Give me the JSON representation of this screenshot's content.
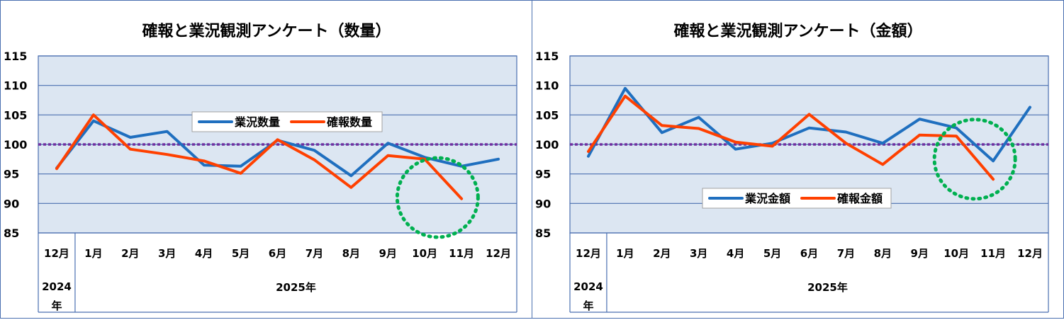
{
  "chart_data": [
    {
      "type": "line",
      "title": "確報と業況観測アンケート（数量）",
      "categories": [
        "12月",
        "1月",
        "2月",
        "3月",
        "4月",
        "5月",
        "6月",
        "7月",
        "8月",
        "9月",
        "10月",
        "11月",
        "12月"
      ],
      "year_groups": [
        {
          "label": "2024年",
          "lines": [
            "2024",
            "年"
          ],
          "span": 1
        },
        {
          "label": "2025年",
          "lines": [
            "2025年"
          ],
          "span": 12
        }
      ],
      "series": [
        {
          "name": "業況数量",
          "color": "#1f6fbf",
          "values": [
            96.0,
            104.0,
            101.2,
            102.2,
            96.5,
            96.3,
            100.7,
            99.0,
            94.7,
            100.2,
            97.8,
            96.3,
            97.5
          ]
        },
        {
          "name": "確報数量",
          "color": "#ff4000",
          "values": [
            95.9,
            105.0,
            99.2,
            98.3,
            97.2,
            95.1,
            100.8,
            97.4,
            92.7,
            98.1,
            97.5,
            90.8,
            null
          ]
        }
      ],
      "ylim": [
        85,
        115
      ],
      "yticks": [
        85,
        90,
        95,
        100,
        105,
        110,
        115
      ],
      "reference_line": {
        "value": 100,
        "color": "#7030a0",
        "style": "dotted"
      },
      "highlight_circle": {
        "center_category": 10.85,
        "center_value": 91.0,
        "color": "#00b050"
      },
      "legend_position": "top-center",
      "grid": true,
      "plot_bg": "#dce6f2",
      "grid_color": "#4a6fb0"
    },
    {
      "type": "line",
      "title": "確報と業況観測アンケート（金額）",
      "categories": [
        "12月",
        "1月",
        "2月",
        "3月",
        "4月",
        "5月",
        "6月",
        "7月",
        "8月",
        "9月",
        "10月",
        "11月",
        "12月"
      ],
      "year_groups": [
        {
          "label": "2024年",
          "lines": [
            "2024",
            "年"
          ],
          "span": 1
        },
        {
          "label": "2025年",
          "lines": [
            "2025年"
          ],
          "span": 12
        }
      ],
      "series": [
        {
          "name": "業況金額",
          "color": "#1f6fbf",
          "values": [
            98.0,
            109.5,
            102.0,
            104.6,
            99.2,
            100.2,
            102.8,
            102.1,
            100.2,
            104.3,
            102.8,
            97.2,
            106.3
          ]
        },
        {
          "name": "確報金額",
          "color": "#ff4000",
          "values": [
            98.8,
            108.2,
            103.2,
            102.7,
            100.4,
            99.7,
            105.1,
            100.2,
            96.6,
            101.6,
            101.4,
            94.1,
            null
          ]
        }
      ],
      "ylim": [
        85,
        115
      ],
      "yticks": [
        85,
        90,
        95,
        100,
        105,
        110,
        115
      ],
      "reference_line": {
        "value": 100,
        "color": "#7030a0",
        "style": "dotted"
      },
      "highlight_circle": {
        "center_category": 11.0,
        "center_value": 97.5,
        "color": "#00b050"
      },
      "legend_position": "bottom-center",
      "grid": true,
      "plot_bg": "#dce6f2",
      "grid_color": "#4a6fb0"
    }
  ]
}
